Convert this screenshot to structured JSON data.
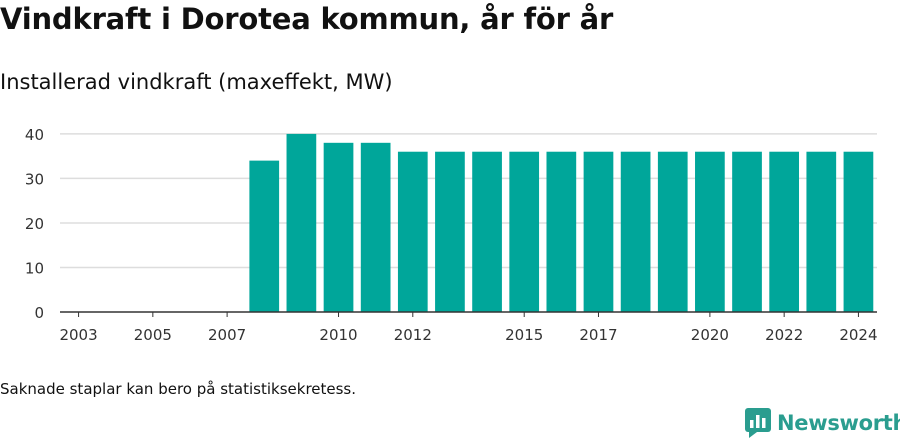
{
  "title": "Vindkraft i Dorotea kommun, år för år",
  "subtitle": "Installerad vindkraft (maxeffekt, MW)",
  "note": "Saknade staplar kan bero på statistiksekretess.",
  "brand": {
    "name": "Newsworthy",
    "color": "#2a9d8f",
    "icon": "bar-chart-logo-icon"
  },
  "colors": {
    "bar": "#00a69a",
    "grid": "#dddddd",
    "axis": "#333333"
  },
  "chart_data": {
    "type": "bar",
    "title": "",
    "xlabel": "",
    "ylabel": "",
    "categories": [
      "2003",
      "2004",
      "2005",
      "2006",
      "2007",
      "2008",
      "2009",
      "2010",
      "2011",
      "2012",
      "2013",
      "2014",
      "2015",
      "2016",
      "2017",
      "2018",
      "2019",
      "2020",
      "2021",
      "2022",
      "2023",
      "2024"
    ],
    "values": [
      0,
      0,
      0,
      0,
      0,
      34,
      40,
      38,
      38,
      36,
      36,
      36,
      36,
      36,
      36,
      36,
      36,
      36,
      36,
      36,
      36,
      36
    ],
    "x_tick_labels": [
      "2003",
      "2005",
      "2007",
      "2010",
      "2012",
      "2015",
      "2017",
      "2020",
      "2022",
      "2024"
    ],
    "y_ticks": [
      0,
      10,
      20,
      30,
      40
    ],
    "ylim": [
      0,
      42
    ],
    "grid": true,
    "legend": "none"
  }
}
